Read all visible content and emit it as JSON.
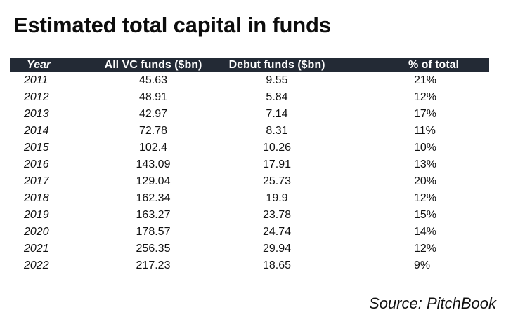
{
  "title": "Estimated total capital in funds",
  "source": "Source: PitchBook",
  "colors": {
    "header_bg": "#232a35",
    "header_text": "#ffffff",
    "text": "#111111"
  },
  "chart_data": {
    "type": "table",
    "title": "Estimated total capital in funds",
    "columns": [
      "Year",
      "All VC funds ($bn)",
      "Debut funds ($bn)",
      "% of total"
    ],
    "rows": [
      [
        "2011",
        "45.63",
        "9.55",
        "21%"
      ],
      [
        "2012",
        "48.91",
        "5.84",
        "12%"
      ],
      [
        "2013",
        "42.97",
        "7.14",
        "17%"
      ],
      [
        "2014",
        "72.78",
        "8.31",
        "11%"
      ],
      [
        "2015",
        "102.4",
        "10.26",
        "10%"
      ],
      [
        "2016",
        "143.09",
        "17.91",
        "13%"
      ],
      [
        "2017",
        "129.04",
        "25.73",
        "20%"
      ],
      [
        "2018",
        "162.34",
        "19.9",
        "12%"
      ],
      [
        "2019",
        "163.27",
        "23.78",
        "15%"
      ],
      [
        "2020",
        "178.57",
        "24.74",
        "14%"
      ],
      [
        "2021",
        "256.35",
        "29.94",
        "12%"
      ],
      [
        "2022",
        "217.23",
        "18.65",
        "9%"
      ]
    ]
  }
}
